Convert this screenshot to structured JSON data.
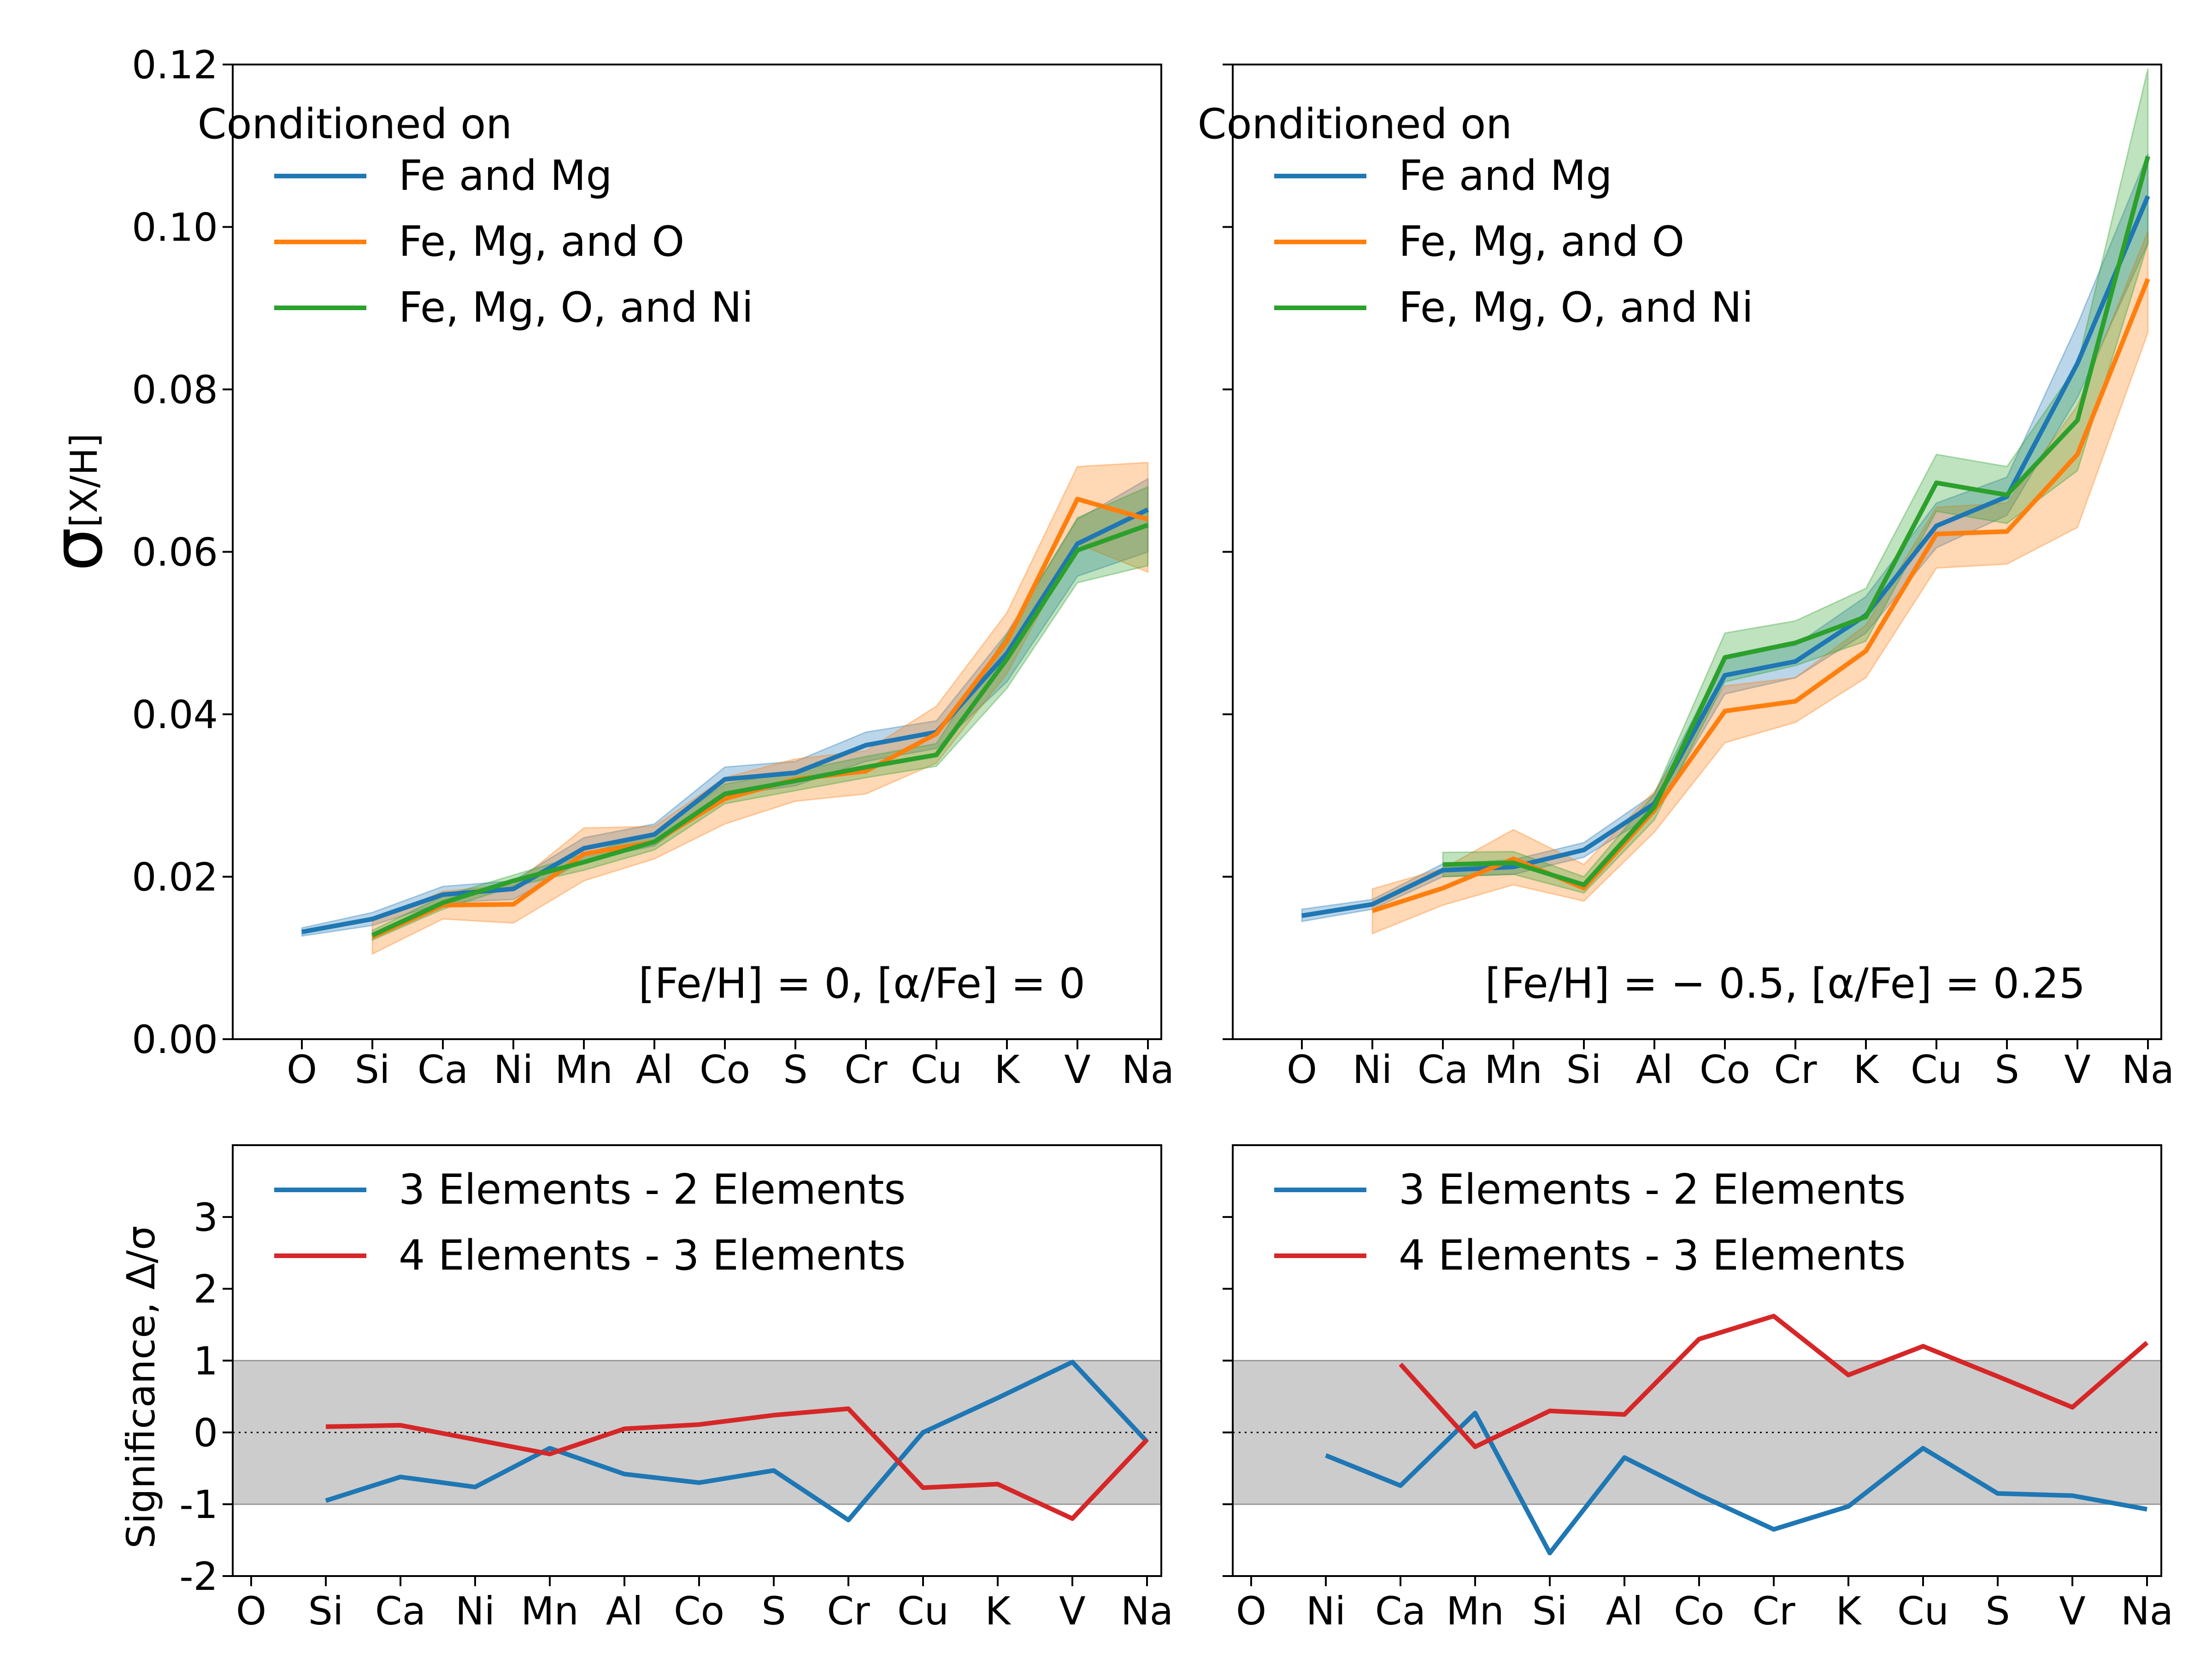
{
  "chart_data": [
    {
      "type": "line",
      "panel": "top-left",
      "ylabel": "σ[X/H]",
      "ylim": [
        0,
        0.12
      ],
      "yticks": [
        "0.00",
        "0.02",
        "0.04",
        "0.06",
        "0.08",
        "0.10",
        "0.12"
      ],
      "categories": [
        "O",
        "Si",
        "Ca",
        "Ni",
        "Mn",
        "Al",
        "Co",
        "S",
        "Cr",
        "Cu",
        "K",
        "V",
        "Na"
      ],
      "legend_title": "Conditioned on",
      "legend_position": "upper-left",
      "annotation": "[Fe/H] = 0, [α/Fe] = 0",
      "series": [
        {
          "name": "Fe and Mg",
          "color": "#1f77b4",
          "values": [
            0.0132,
            0.0148,
            0.0178,
            0.0185,
            0.0235,
            0.0252,
            0.032,
            0.0328,
            0.0362,
            0.0378,
            0.0475,
            0.061,
            0.0652
          ],
          "lower": [
            0.0127,
            0.014,
            0.0168,
            0.0172,
            0.022,
            0.0238,
            0.03,
            0.0312,
            0.0342,
            0.0358,
            0.044,
            0.057,
            0.06
          ],
          "upper": [
            0.0137,
            0.0156,
            0.0188,
            0.0195,
            0.0248,
            0.0265,
            0.0335,
            0.0342,
            0.0378,
            0.0392,
            0.05,
            0.064,
            0.069
          ]
        },
        {
          "name": "Fe, Mg, and O",
          "color": "#ff7f0e",
          "values": [
            null,
            0.0126,
            0.0165,
            0.0166,
            0.0228,
            0.0243,
            0.0296,
            0.032,
            0.033,
            0.0376,
            0.049,
            0.0665,
            0.064
          ],
          "lower": [
            null,
            0.0105,
            0.0148,
            0.0143,
            0.0195,
            0.0222,
            0.0265,
            0.0293,
            0.0302,
            0.034,
            0.045,
            0.061,
            0.0575
          ],
          "upper": [
            null,
            0.0145,
            0.0182,
            0.019,
            0.026,
            0.0262,
            0.0322,
            0.0345,
            0.0355,
            0.041,
            0.0525,
            0.0705,
            0.071
          ]
        },
        {
          "name": "Fe, Mg, O, and Ni",
          "color": "#2ca02c",
          "values": [
            null,
            0.0128,
            0.0168,
            0.0195,
            0.0218,
            0.0243,
            0.0302,
            0.0318,
            0.0335,
            0.035,
            0.0468,
            0.0602,
            0.0633
          ],
          "lower": [
            null,
            0.0122,
            0.016,
            0.0188,
            0.0208,
            0.0233,
            0.029,
            0.0306,
            0.0322,
            0.0336,
            0.0432,
            0.0562,
            0.0583
          ],
          "upper": [
            null,
            0.0134,
            0.0176,
            0.0202,
            0.0228,
            0.0253,
            0.0314,
            0.033,
            0.0348,
            0.0364,
            0.0498,
            0.0642,
            0.068
          ]
        }
      ]
    },
    {
      "type": "line",
      "panel": "top-right",
      "ylim": [
        0,
        0.12
      ],
      "categories": [
        "O",
        "Ni",
        "Ca",
        "Mn",
        "Si",
        "Al",
        "Co",
        "Cr",
        "K",
        "Cu",
        "S",
        "V",
        "Na"
      ],
      "legend_title": "Conditioned on",
      "legend_position": "upper-left",
      "annotation": "[Fe/H] = − 0.5, [α/Fe] = 0.25",
      "series": [
        {
          "name": "Fe and Mg",
          "color": "#1f77b4",
          "values": [
            0.0152,
            0.0166,
            0.0208,
            0.0212,
            0.0233,
            0.029,
            0.0448,
            0.0465,
            0.0522,
            0.0632,
            0.0668,
            0.0832,
            0.1038
          ],
          "lower": [
            0.0145,
            0.016,
            0.02,
            0.0203,
            0.0224,
            0.0278,
            0.0425,
            0.0445,
            0.05,
            0.0605,
            0.0645,
            0.079,
            0.098
          ],
          "upper": [
            0.016,
            0.0172,
            0.0216,
            0.0221,
            0.0242,
            0.0302,
            0.047,
            0.0485,
            0.0545,
            0.066,
            0.0692,
            0.088,
            0.109
          ]
        },
        {
          "name": "Fe, Mg, and O",
          "color": "#ff7f0e",
          "values": [
            null,
            0.0158,
            0.0186,
            0.0222,
            0.0186,
            0.0282,
            0.0404,
            0.0416,
            0.0478,
            0.0622,
            0.0625,
            0.072,
            0.0936
          ],
          "lower": [
            null,
            0.013,
            0.0165,
            0.019,
            0.017,
            0.0255,
            0.0365,
            0.039,
            0.0445,
            0.058,
            0.0585,
            0.063,
            0.087
          ],
          "upper": [
            null,
            0.0185,
            0.021,
            0.0258,
            0.0215,
            0.0305,
            0.0435,
            0.0445,
            0.051,
            0.0655,
            0.066,
            0.078,
            0.0995
          ]
        },
        {
          "name": "Fe, Mg, O, and Ni",
          "color": "#2ca02c",
          "values": [
            null,
            null,
            0.0215,
            0.0217,
            0.019,
            0.0286,
            0.047,
            0.0488,
            0.052,
            0.0685,
            0.067,
            0.0762,
            0.1087
          ],
          "lower": [
            null,
            null,
            0.02,
            0.0203,
            0.018,
            0.027,
            0.044,
            0.046,
            0.049,
            0.065,
            0.0635,
            0.07,
            0.098
          ],
          "upper": [
            null,
            null,
            0.023,
            0.0231,
            0.02,
            0.0302,
            0.05,
            0.0515,
            0.0555,
            0.072,
            0.0705,
            0.083,
            0.1195
          ]
        }
      ]
    },
    {
      "type": "line",
      "panel": "bottom-left",
      "ylabel": "Significance, Δ/σ",
      "ylim": [
        -2,
        4
      ],
      "yticks": [
        "-2",
        "-1",
        "0",
        "1",
        "2",
        "3"
      ],
      "categories": [
        "O",
        "Si",
        "Ca",
        "Ni",
        "Mn",
        "Al",
        "Co",
        "S",
        "Cr",
        "Cu",
        "K",
        "V",
        "Na"
      ],
      "shaded_band": [
        -1,
        1
      ],
      "reference_line": 0,
      "legend_position": "upper-left",
      "series": [
        {
          "name": "3 Elements - 2 Elements",
          "color": "#1f77b4",
          "values": [
            null,
            -0.95,
            -0.62,
            -0.76,
            -0.22,
            -0.58,
            -0.7,
            -0.53,
            -1.22,
            0.0,
            0.48,
            0.98,
            -0.13
          ]
        },
        {
          "name": "4 Elements - 3 Elements",
          "color": "#d62728",
          "values": [
            null,
            0.08,
            0.1,
            -0.1,
            -0.3,
            0.05,
            0.11,
            0.24,
            0.33,
            -0.77,
            -0.72,
            -1.2,
            -0.1
          ]
        }
      ]
    },
    {
      "type": "line",
      "panel": "bottom-right",
      "ylim": [
        -2,
        4
      ],
      "categories": [
        "O",
        "Ni",
        "Ca",
        "Mn",
        "Si",
        "Al",
        "Co",
        "Cr",
        "K",
        "Cu",
        "S",
        "V",
        "Na"
      ],
      "shaded_band": [
        -1,
        1
      ],
      "reference_line": 0,
      "legend_position": "upper-left",
      "series": [
        {
          "name": "3 Elements - 2 Elements",
          "color": "#1f77b4",
          "values": [
            null,
            -0.32,
            -0.74,
            0.27,
            -1.68,
            -0.35,
            -0.87,
            -1.35,
            -1.03,
            -0.22,
            -0.85,
            -0.88,
            -1.07
          ]
        },
        {
          "name": "4 Elements - 3 Elements",
          "color": "#d62728",
          "values": [
            null,
            null,
            0.95,
            -0.2,
            0.3,
            0.25,
            1.3,
            1.62,
            0.8,
            1.2,
            0.78,
            0.35,
            1.25
          ]
        }
      ]
    }
  ]
}
